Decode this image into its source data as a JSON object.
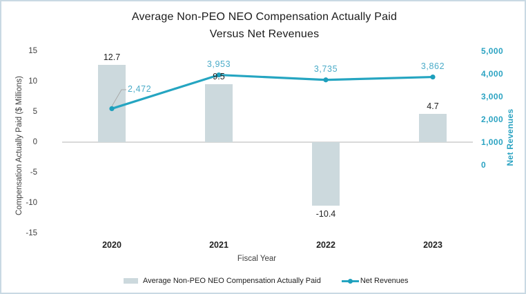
{
  "chart_data": {
    "type": "combo",
    "title": [
      "Average Non-PEO NEO Compensation Actually Paid",
      "Versus Net Revenues"
    ],
    "categories": [
      "2020",
      "2021",
      "2022",
      "2023"
    ],
    "series": [
      {
        "name": "Average Non-PEO NEO Compensation Actually Paid",
        "type": "bar",
        "axis": "left",
        "values": [
          12.7,
          9.5,
          -10.4,
          4.7
        ],
        "labels": [
          "12.7",
          "9.5",
          "-10.4",
          "4.7"
        ],
        "color": "#ccd9dd"
      },
      {
        "name": "Net Revenues",
        "type": "line",
        "axis": "right",
        "values": [
          2472,
          3953,
          3735,
          3862
        ],
        "labels": [
          "2,472",
          "3,953",
          "3,735",
          "3,862"
        ],
        "color": "#25a5c1",
        "marker_color": "#1d9fbc",
        "label_color": "#4aabc8"
      }
    ],
    "xlabel": "Fiscal Year",
    "left_axis": {
      "title": "Compensation Actually Paid ($ Millions)",
      "ticks": [
        15,
        10,
        5,
        0,
        -5,
        -10,
        -15
      ],
      "ylim": [
        -15,
        15
      ]
    },
    "right_axis": {
      "title": "Net Revenues",
      "ticks": [
        "5,000",
        "4,000",
        "3,000",
        "2,000",
        "1,000",
        "0"
      ],
      "tick_values": [
        5000,
        4000,
        3000,
        2000,
        1000,
        0
      ],
      "ylim": [
        0,
        5000
      ]
    },
    "grid": false,
    "legend_position": "bottom"
  },
  "colors": {
    "bar_fill": "#ccd9dd",
    "line": "#25a5c1",
    "marker": "#1d9fbc",
    "point_label": "#4aabc8",
    "right_axis_text": "#2ba3c2",
    "zero_line": "#d9d9d9",
    "leader_line": "#a9a9a9",
    "dark_text": "#1f1f1f"
  }
}
